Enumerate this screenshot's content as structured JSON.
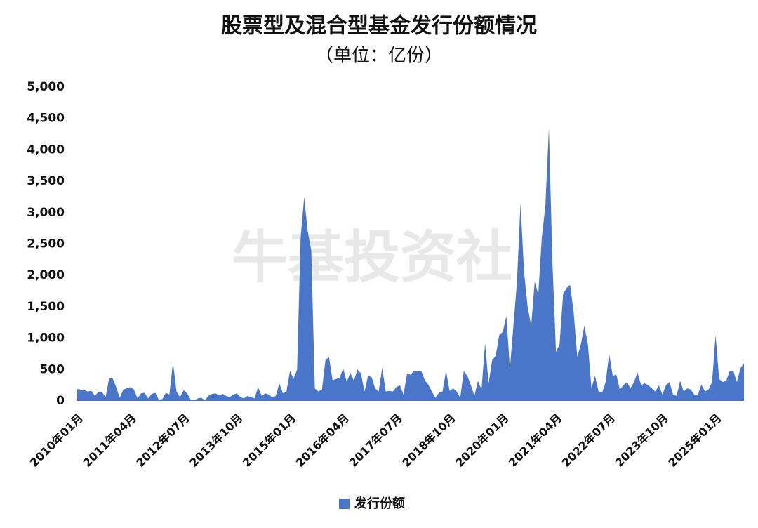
{
  "chart_data": {
    "type": "area",
    "title": "股票型及混合型基金发行份额情况",
    "subtitle": "（单位：亿份）",
    "watermark": "牛基投资社",
    "categories": [
      "2010年01月",
      null,
      null,
      null,
      null,
      null,
      null,
      null,
      null,
      null,
      null,
      null,
      null,
      null,
      null,
      "2011年04月",
      null,
      null,
      null,
      null,
      null,
      null,
      null,
      null,
      null,
      null,
      null,
      null,
      null,
      null,
      "2012年07月",
      null,
      null,
      null,
      null,
      null,
      null,
      null,
      null,
      null,
      null,
      null,
      null,
      null,
      null,
      "2013年10月",
      null,
      null,
      null,
      null,
      null,
      null,
      null,
      null,
      null,
      null,
      null,
      null,
      null,
      null,
      "2015年01月",
      null,
      null,
      null,
      null,
      null,
      null,
      null,
      null,
      null,
      null,
      null,
      null,
      null,
      null,
      "2016年04月",
      null,
      null,
      null,
      null,
      null,
      null,
      null,
      null,
      null,
      null,
      null,
      null,
      null,
      null,
      "2017年07月",
      null,
      null,
      null,
      null,
      null,
      null,
      null,
      null,
      null,
      null,
      null,
      null,
      null,
      null,
      "2018年10月",
      null,
      null,
      null,
      null,
      null,
      null,
      null,
      null,
      null,
      null,
      null,
      null,
      null,
      null,
      "2020年01月",
      null,
      null,
      null,
      null,
      null,
      null,
      null,
      null,
      null,
      null,
      null,
      null,
      null,
      null,
      "2021年04月",
      null,
      null,
      null,
      null,
      null,
      null,
      null,
      null,
      null,
      null,
      null,
      null,
      null,
      null,
      "2022年07月",
      null,
      null,
      null,
      null,
      null,
      null,
      null,
      null,
      null,
      null,
      null,
      null,
      null,
      null,
      "2023年10月",
      null,
      null,
      null,
      null,
      null,
      null,
      null,
      null,
      null,
      null,
      null,
      null,
      null,
      null,
      "2025年01月",
      null,
      null,
      null,
      null,
      null,
      null,
      null,
      null
    ],
    "series": [
      {
        "name": "发行份额",
        "color": "#4a76c9",
        "values": [
          190,
          180,
          170,
          150,
          160,
          80,
          150,
          140,
          60,
          360,
          360,
          220,
          50,
          180,
          200,
          220,
          180,
          40,
          120,
          130,
          40,
          110,
          130,
          20,
          30,
          130,
          100,
          620,
          150,
          60,
          170,
          120,
          20,
          10,
          40,
          50,
          10,
          80,
          110,
          120,
          90,
          110,
          80,
          60,
          100,
          120,
          60,
          40,
          80,
          60,
          40,
          220,
          80,
          120,
          100,
          60,
          80,
          280,
          120,
          150,
          480,
          350,
          500,
          2600,
          3250,
          2700,
          2400,
          200,
          150,
          180,
          650,
          700,
          330,
          350,
          370,
          520,
          300,
          450,
          320,
          500,
          440,
          150,
          400,
          380,
          200,
          150,
          530,
          150,
          160,
          150,
          220,
          250,
          100,
          430,
          420,
          480,
          470,
          480,
          330,
          260,
          150,
          50,
          130,
          150,
          480,
          160,
          200,
          150,
          50,
          480,
          400,
          250,
          80,
          320,
          180,
          920,
          280,
          650,
          720,
          1050,
          1100,
          1350,
          520,
          1200,
          1900,
          3150,
          2050,
          1500,
          1200,
          1900,
          1700,
          2600,
          3100,
          4350,
          2200,
          780,
          900,
          1700,
          1800,
          1850,
          1400,
          700,
          900,
          1200,
          900,
          200,
          400,
          150,
          130,
          300,
          750,
          400,
          420,
          180,
          250,
          300,
          200,
          300,
          450,
          250,
          280,
          250,
          200,
          150,
          250,
          100,
          250,
          300,
          100,
          80,
          320,
          150,
          200,
          180,
          100,
          100,
          260,
          150,
          180,
          300,
          1050,
          350,
          300,
          320,
          480,
          480,
          300,
          520,
          600
        ]
      }
    ],
    "ylim": [
      0,
      5000
    ],
    "yticks": [
      0,
      500,
      {
        "value": 1000,
        "label": "1,000"
      },
      {
        "value": 1500,
        "label": "1,500"
      },
      {
        "value": 2000,
        "label": "2,000"
      },
      {
        "value": 2500,
        "label": "2,500"
      },
      {
        "value": 3000,
        "label": "3,000"
      },
      {
        "value": 3500,
        "label": "3,500"
      },
      {
        "value": 4000,
        "label": "4,000"
      },
      {
        "value": 4500,
        "label": "4,500"
      },
      {
        "value": 5000,
        "label": "5,000"
      }
    ],
    "grid": false,
    "legend": "bottom"
  }
}
